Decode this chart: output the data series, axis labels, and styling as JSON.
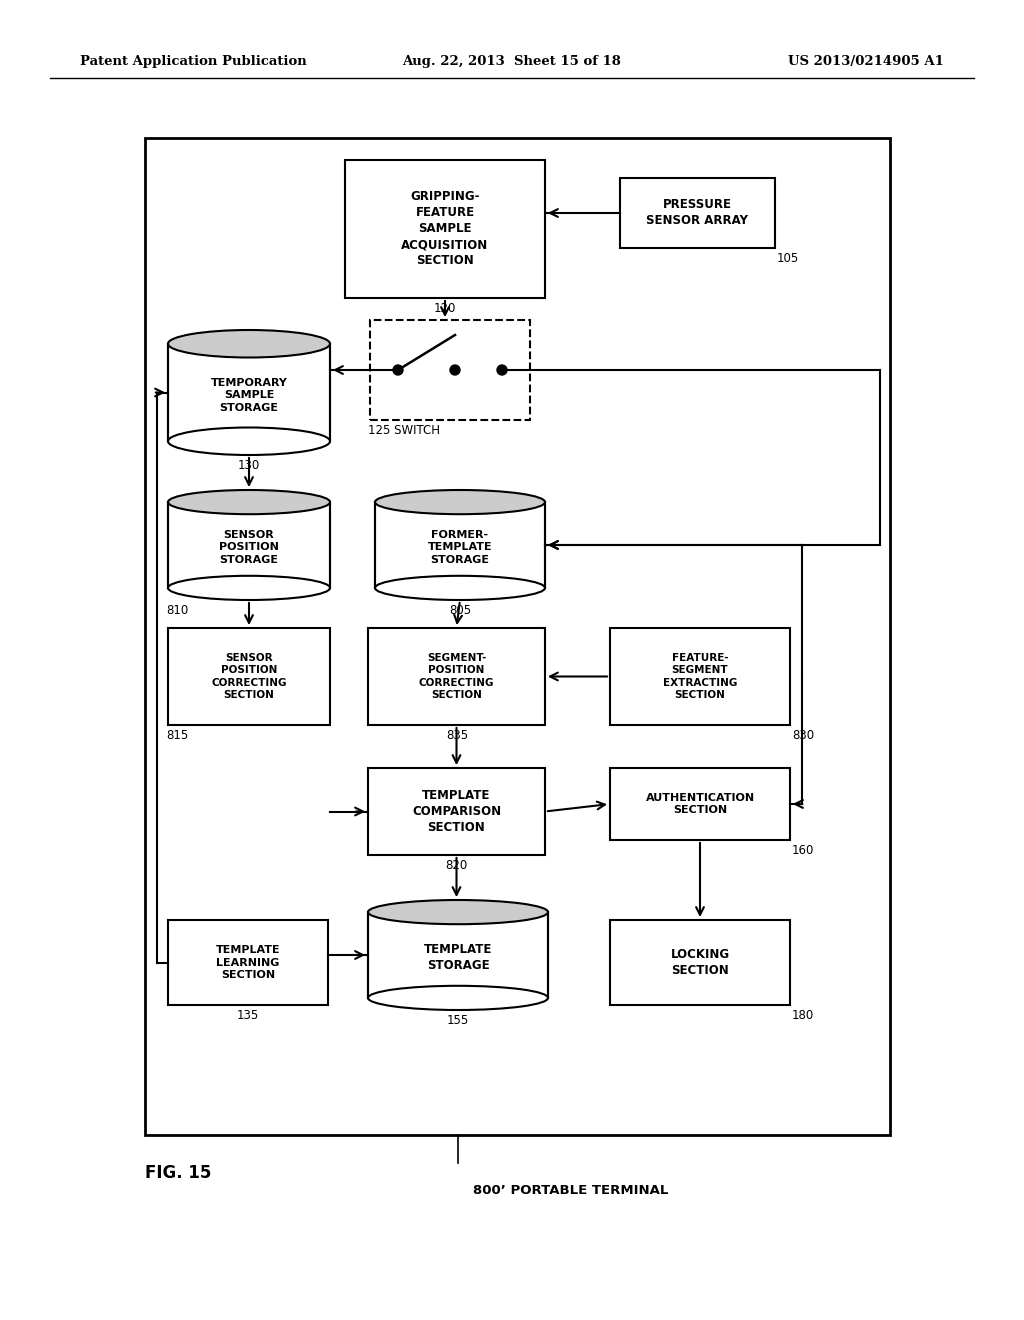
{
  "bg_color": "#ffffff",
  "header_left": "Patent Application Publication",
  "header_center": "Aug. 22, 2013  Sheet 15 of 18",
  "header_right": "US 2013/0214905 A1",
  "fig_label": "FIG. 15",
  "terminal_label": "800’ PORTABLE TERMINAL"
}
